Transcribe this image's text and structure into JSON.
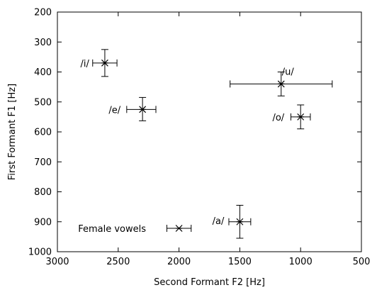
{
  "chart_data": {
    "type": "scatter",
    "title": "",
    "xlabel": "Second Formant F2 [Hz]",
    "ylabel": "First Formant F1 [Hz]",
    "xlim": [
      3000,
      500
    ],
    "ylim": [
      1000,
      200
    ],
    "x_reversed": true,
    "y_reversed": true,
    "x_ticks": [
      3000,
      2500,
      2000,
      1500,
      1000,
      500
    ],
    "y_ticks": [
      200,
      300,
      400,
      500,
      600,
      700,
      800,
      900,
      1000
    ],
    "grid": false,
    "legend": {
      "placement": "bottom-left",
      "entries": [
        {
          "label": "Female vowels",
          "marker": "star"
        }
      ]
    },
    "series": [
      {
        "name": "Female vowels",
        "marker": "star",
        "color": "#000000",
        "points": [
          {
            "label": "/i/",
            "x": 2610,
            "y": 370,
            "x_err": [
              2710,
              2510
            ],
            "y_err": [
              325,
              415
            ]
          },
          {
            "label": "/e/",
            "x": 2300,
            "y": 525,
            "x_err": [
              2430,
              2190
            ],
            "y_err": [
              485,
              563
            ]
          },
          {
            "label": "/u/",
            "x": 1160,
            "y": 440,
            "x_err": [
              1580,
              740
            ],
            "y_err": [
              400,
              480
            ]
          },
          {
            "label": "/o/",
            "x": 1000,
            "y": 550,
            "x_err": [
              1080,
              920
            ],
            "y_err": [
              510,
              590
            ]
          },
          {
            "label": "/a/",
            "x": 1500,
            "y": 900,
            "x_err": [
              1590,
              1410
            ],
            "y_err": [
              845,
              955
            ]
          }
        ]
      }
    ],
    "legend_sample_errbar": [
      2100,
      1900
    ]
  }
}
